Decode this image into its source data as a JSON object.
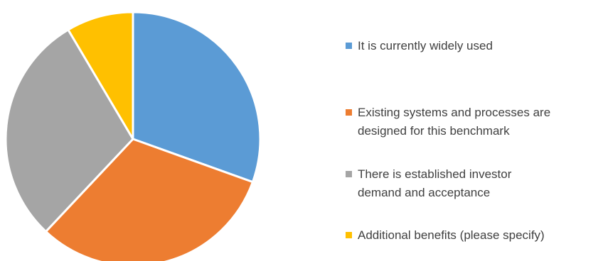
{
  "chart_data": {
    "type": "pie",
    "title": "",
    "series": [
      {
        "values": [
          30.5,
          31.5,
          29.5,
          8.5
        ]
      }
    ],
    "categories": [
      "It is currently widely used",
      "Existing systems and processes are designed for this benchmark",
      "There is established investor demand and acceptance",
      "Additional benefits (please specify)"
    ],
    "colors": [
      "#5B9BD5",
      "#ED7D31",
      "#A5A5A5",
      "#FFC000"
    ],
    "legend_position": "right"
  },
  "legend": {
    "items": [
      {
        "label": "It is currently widely used",
        "color": "#5B9BD5"
      },
      {
        "label": "Existing systems and processes are\ndesigned for this benchmark",
        "color": "#ED7D31"
      },
      {
        "label": "There is established investor\ndemand and acceptance",
        "color": "#A5A5A5"
      },
      {
        "label": "Additional benefits (please specify)",
        "color": "#FFC000"
      }
    ]
  }
}
